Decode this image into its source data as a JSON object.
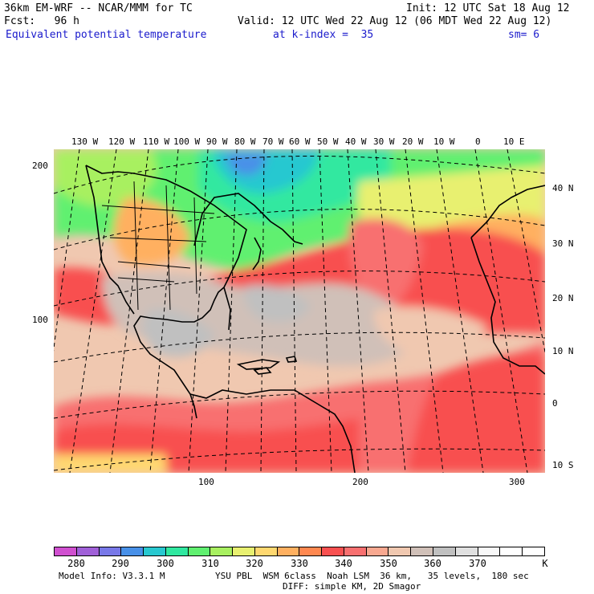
{
  "header": {
    "model": "36km EM-WRF -- NCAR/MMM for TC",
    "init": "Init: 12 UTC Sat 18 Aug 12",
    "fcst": "Fcst:   96 h",
    "valid": "Valid: 12 UTC Wed 22 Aug 12 (06 MDT Wed 22 Aug 12)",
    "field": "Equivalent potential temperature",
    "level": "at k-index =  35",
    "smoothing": "sm= 6"
  },
  "map": {
    "top_lon_labels": [
      "130 W",
      "120 W",
      "110 W",
      "100 W",
      "90 W",
      "80 W",
      "70 W",
      "60 W",
      "50 W",
      "40 W",
      "30 W",
      "20 W",
      "10 W",
      "0",
      "10 E"
    ],
    "right_lat_labels": [
      "40 N",
      "30 N",
      "20 N",
      "10 N",
      "0",
      "10 S"
    ],
    "left_grid_labels": [
      "200",
      "100"
    ],
    "bottom_grid_labels": [
      "100",
      "200",
      "300"
    ]
  },
  "colorbar": {
    "colors": [
      "#d050d0",
      "#a060d8",
      "#7878e8",
      "#4890e8",
      "#28c8d0",
      "#30e8a0",
      "#60f070",
      "#a8f060",
      "#e8f070",
      "#ffd870",
      "#ffb060",
      "#ff8850",
      "#f85050",
      "#f87070",
      "#f8a890",
      "#f0c8b0",
      "#d0c0b8",
      "#c0c0c0",
      "#e0e0e0",
      "#f8f8f8",
      "#ffffff",
      "#ffffff"
    ],
    "labels": [
      "280",
      "290",
      "300",
      "310",
      "320",
      "330",
      "340",
      "350",
      "360",
      "370"
    ],
    "unit": "K"
  },
  "footer": {
    "info": "Model Info: V3.3.1 M",
    "physics": "YSU PBL  WSM 6class  Noah LSM  36 km,   35 levels,  180 sec",
    "diffusion": "DIFF: simple KM, 2D Smagor"
  }
}
